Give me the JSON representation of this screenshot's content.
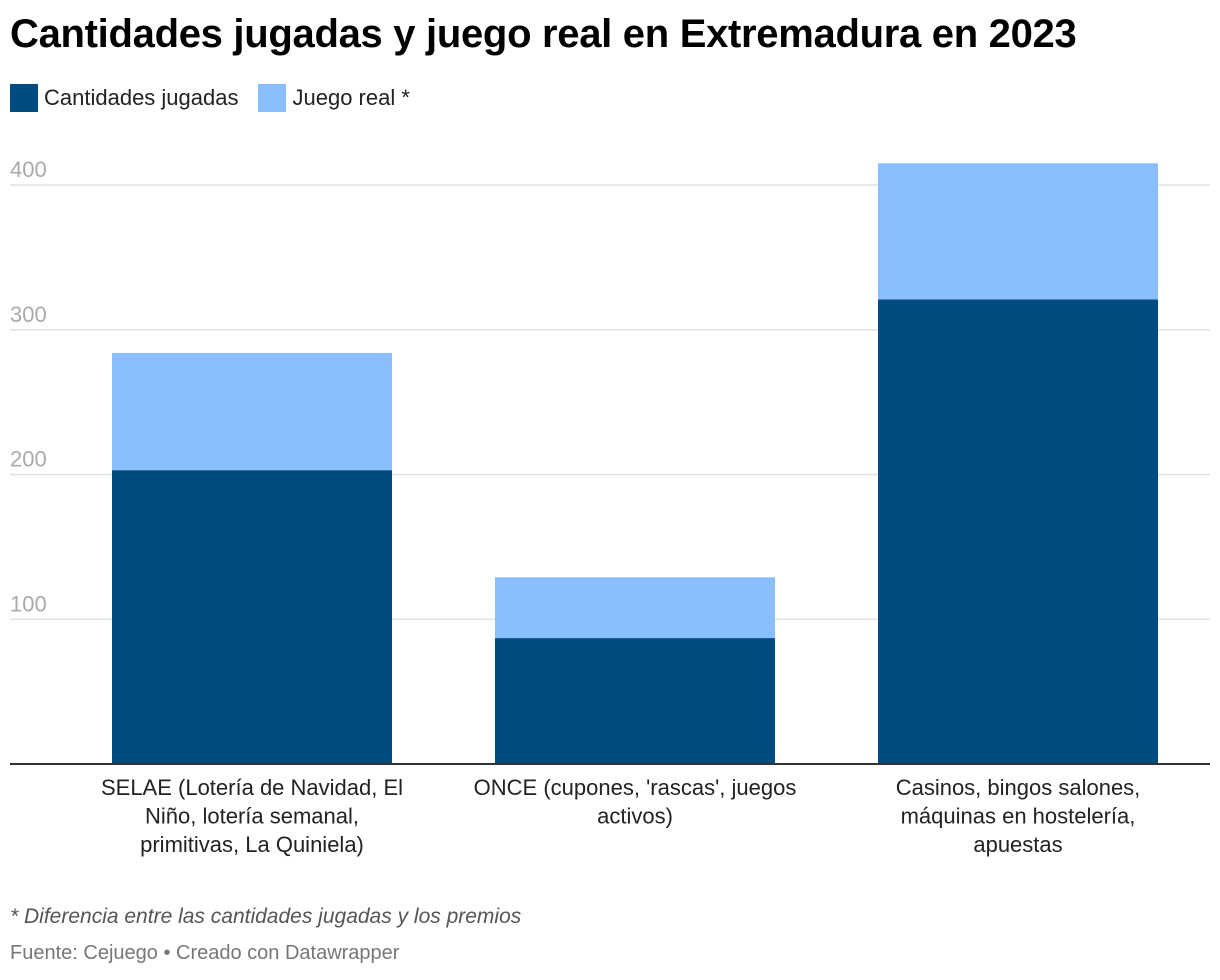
{
  "title": "Cantidades jugadas y juego real en Extremadura en 2023",
  "legend": [
    {
      "label": "Cantidades jugadas",
      "color": "#004c80"
    },
    {
      "label": "Juego real *",
      "color": "#8bbefe"
    }
  ],
  "note": "* Diferencia entre las cantidades jugadas y los premios",
  "source": "Fuente: Cejuego • Creado con Datawrapper",
  "chart_data": {
    "type": "bar",
    "stacked": true,
    "categories": [
      "SELAE (Lotería de Navidad, El Niño, lotería semanal, primitivas, La Quiniela)",
      "ONCE (cupones, 'rascas', juegos activos)",
      "Casinos, bingos salones, máquinas en hostelería, apuestas"
    ],
    "category_lines": [
      [
        "SELAE (Lotería de Navidad, El",
        "Niño, lotería semanal,",
        "primitivas, La Quiniela)"
      ],
      [
        "ONCE (cupones, 'rascas', juegos",
        "activos)"
      ],
      [
        "Casinos, bingos salones,",
        "máquinas en hostelería,",
        "apuestas"
      ]
    ],
    "series": [
      {
        "name": "Cantidades jugadas",
        "color": "#004c80",
        "values": [
          203,
          87,
          321
        ]
      },
      {
        "name": "Juego real *",
        "color": "#8bbefe",
        "values": [
          81,
          42,
          94
        ]
      }
    ],
    "yticks": [
      100,
      200,
      300,
      400
    ],
    "ylim": [
      0,
      415
    ],
    "grid": true,
    "legend_position": "top-left"
  }
}
